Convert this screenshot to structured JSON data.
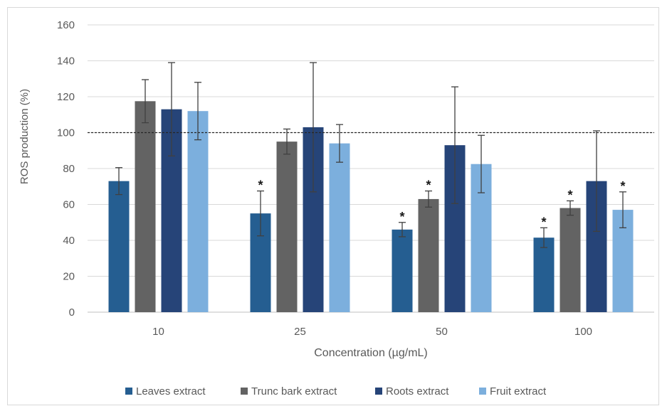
{
  "chart_data": {
    "type": "bar",
    "title": "",
    "xlabel": "Concentration (µg/mL)",
    "ylabel": "ROS production (%)",
    "ylim": [
      0,
      160
    ],
    "yticks": [
      0,
      20,
      40,
      60,
      80,
      100,
      120,
      140,
      160
    ],
    "grid": true,
    "reference_line": 100,
    "legend": "bottom",
    "categories": [
      "10",
      "25",
      "50",
      "100"
    ],
    "significance_marker": "*",
    "series": [
      {
        "name": "Leaves extract",
        "color": "#255e91",
        "values": [
          73,
          55,
          46,
          41.5
        ],
        "errors": [
          7.5,
          12.5,
          4,
          5.5
        ],
        "significant": [
          false,
          true,
          true,
          true
        ]
      },
      {
        "name": "Trunc bark extract",
        "color": "#636363",
        "values": [
          117.5,
          95,
          63,
          58
        ],
        "errors": [
          12,
          7,
          4.5,
          4
        ],
        "significant": [
          false,
          false,
          true,
          true
        ]
      },
      {
        "name": "Roots extract",
        "color": "#264478",
        "values": [
          113,
          103,
          93,
          73
        ],
        "errors": [
          26,
          36,
          32.5,
          28
        ],
        "significant": [
          false,
          false,
          false,
          false
        ]
      },
      {
        "name": "Fruit extract",
        "color": "#7cafdd",
        "values": [
          112,
          94,
          82.5,
          57
        ],
        "errors": [
          16,
          10.5,
          16,
          10
        ],
        "significant": [
          false,
          false,
          false,
          true
        ]
      }
    ]
  }
}
